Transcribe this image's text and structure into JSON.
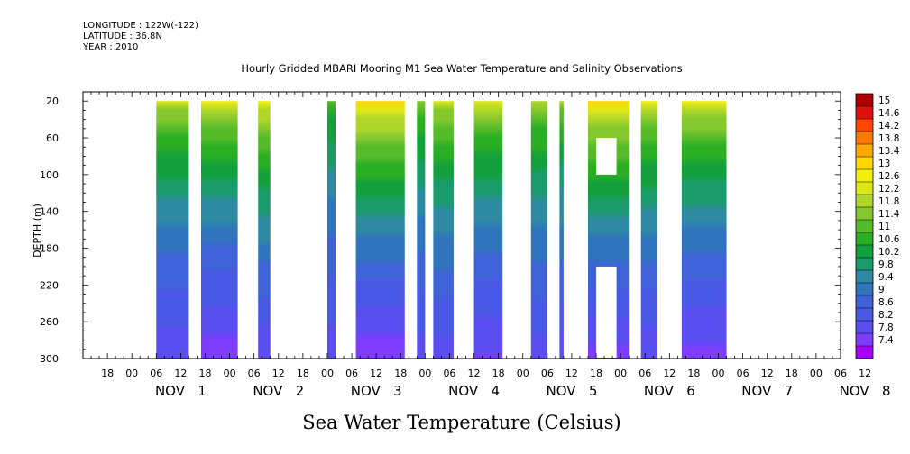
{
  "header": {
    "longitude": "LONGITUDE : 122W(-122)",
    "latitude": "LATITUDE : 36.8N",
    "year": "YEAR : 2010",
    "title": "Hourly Gridded MBARI Mooring M1 Sea Water Temperature and Salinity Observations"
  },
  "chart_data": {
    "type": "heatmap",
    "title": "Hourly Gridded MBARI Mooring M1 Sea Water Temperature and Salinity Observations",
    "units_label": "Sea Water Temperature (Celsius)",
    "ylabel": "DEPTH (m)",
    "ylim": [
      300,
      10
    ],
    "y_ticks": [
      20,
      60,
      100,
      140,
      180,
      220,
      260,
      300
    ],
    "x_range_hours": [
      0,
      186
    ],
    "x_hour_ticks": [
      "18",
      "00",
      "06",
      "12",
      "18",
      "00",
      "06",
      "12",
      "18",
      "00",
      "06",
      "12",
      "18",
      "00",
      "06",
      "12",
      "18",
      "00",
      "06",
      "12",
      "18",
      "00",
      "06",
      "12",
      "18",
      "00",
      "06",
      "12",
      "18",
      "00",
      "06",
      "12"
    ],
    "x_day_labels": [
      "NOV 1",
      "NOV 2",
      "NOV 3",
      "NOV 4",
      "NOV 5",
      "NOV 6",
      "NOV 7",
      "NOV 8"
    ],
    "colorbar": {
      "levels": [
        7.4,
        7.8,
        8.2,
        8.6,
        9,
        9.4,
        9.8,
        10.2,
        10.6,
        11,
        11.4,
        11.8,
        12.2,
        12.6,
        13,
        13.4,
        13.8,
        14.2,
        14.6,
        15
      ],
      "labels": [
        "15",
        "14.6",
        "14.2",
        "13.8",
        "13.4",
        "13",
        "12.6",
        "12.2",
        "11.8",
        "11.4",
        "11",
        "10.6",
        "10.2",
        "9.8",
        "9.4",
        "9",
        "8.6",
        "8.2",
        "7.8",
        "7.4"
      ]
    },
    "data_segments": [
      {
        "start": "Nov 1 06:00",
        "end": "Nov 1 14:00",
        "surface_temp": 12.3,
        "bottom_temp": 7.8
      },
      {
        "start": "Nov 1 17:00",
        "end": "Nov 2 02:00",
        "surface_temp": 12.6,
        "bottom_temp": 7.5
      },
      {
        "start": "Nov 2 07:00",
        "end": "Nov 2 10:00",
        "surface_temp": 12.8,
        "bottom_temp": 7.8
      },
      {
        "start": "Nov 3 00:00",
        "end": "Nov 3 02:00",
        "surface_temp": 11.2,
        "bottom_temp": 7.9
      },
      {
        "start": "Nov 3 07:00",
        "end": "Nov 3 19:00",
        "surface_temp": 13.3,
        "bottom_temp": 7.5
      },
      {
        "start": "Nov 3 22:00",
        "end": "Nov 4 00:00",
        "surface_temp": 11.6,
        "bottom_temp": 8.0
      },
      {
        "start": "Nov 4 02:00",
        "end": "Nov 4 07:00",
        "surface_temp": 12.3,
        "bottom_temp": 8.0
      },
      {
        "start": "Nov 4 12:00",
        "end": "Nov 4 19:00",
        "surface_temp": 12.4,
        "bottom_temp": 7.7
      },
      {
        "start": "Nov 5 02:00",
        "end": "Nov 5 06:00",
        "surface_temp": 12.0,
        "bottom_temp": 8.0
      },
      {
        "start": "Nov 5 09:00",
        "end": "Nov 5 10:00",
        "surface_temp": 11.8,
        "bottom_temp": 8.0
      },
      {
        "start": "Nov 5 16:00",
        "end": "Nov 6 02:00",
        "surface_temp": 13.2,
        "bottom_temp": 7.6
      },
      {
        "start": "Nov 6 05:00",
        "end": "Nov 6 09:00",
        "surface_temp": 12.6,
        "bottom_temp": 7.8
      },
      {
        "start": "Nov 6 15:00",
        "end": "Nov 7 02:00",
        "surface_temp": 12.7,
        "bottom_temp": 7.6
      }
    ],
    "missing_blocks": [
      {
        "start": "Nov 5 18:00",
        "end": "Nov 5 23:00",
        "depth_top": 60,
        "depth_bottom": 100
      },
      {
        "start": "Nov 5 18:00",
        "end": "Nov 5 23:00",
        "depth_top": 200,
        "depth_bottom": 300
      }
    ]
  },
  "colors": {
    "scale": [
      "#a600ff",
      "#7e3cff",
      "#5a4ef0",
      "#4a58e6",
      "#3f62d8",
      "#2f74bc",
      "#2d8aa2",
      "#1b9b6c",
      "#13a03c",
      "#2aae24",
      "#56bb2a",
      "#84c82e",
      "#b0d62a",
      "#dde818",
      "#f3f010",
      "#ffd800",
      "#ffa800",
      "#ff7a00",
      "#ff4500",
      "#e01010",
      "#a80000"
    ]
  }
}
